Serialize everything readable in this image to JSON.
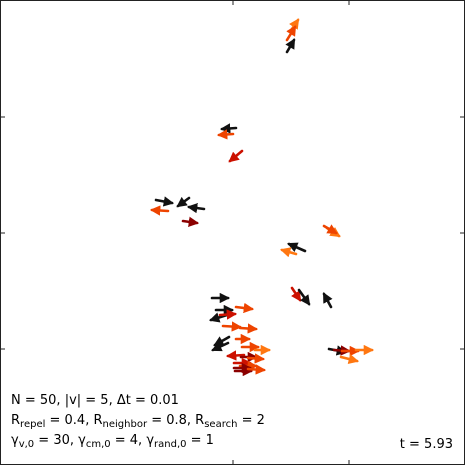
{
  "simulation": {
    "params_line1": {
      "n": "N = 50, |v| = 5, ",
      "delta": "Δ",
      "dt": "t = 0.01"
    },
    "params_line2": {
      "r1": "R",
      "r1_sub": "repel",
      "r1_val": " = 0.4, ",
      "r2": "R",
      "r2_sub": "neighbor",
      "r2_val": " = 0.8, ",
      "r3": "R",
      "r3_sub": "search",
      "r3_val": " = 2"
    },
    "params_line3": {
      "g1": "γ",
      "g1_sub": "v,0",
      "g1_val": " = 30, ",
      "g2": "γ",
      "g2_sub": "cm,0",
      "g2_val": " = 4, ",
      "g3": "γ",
      "g3_sub": "rand,0",
      "g3_val": " = 1"
    },
    "time_label": "t = 5.93"
  },
  "colors": {
    "black": "#111111",
    "dark_red": "#8b0000",
    "red": "#cc1100",
    "orange_red": "#ee4400",
    "orange": "#ff7711"
  }
}
